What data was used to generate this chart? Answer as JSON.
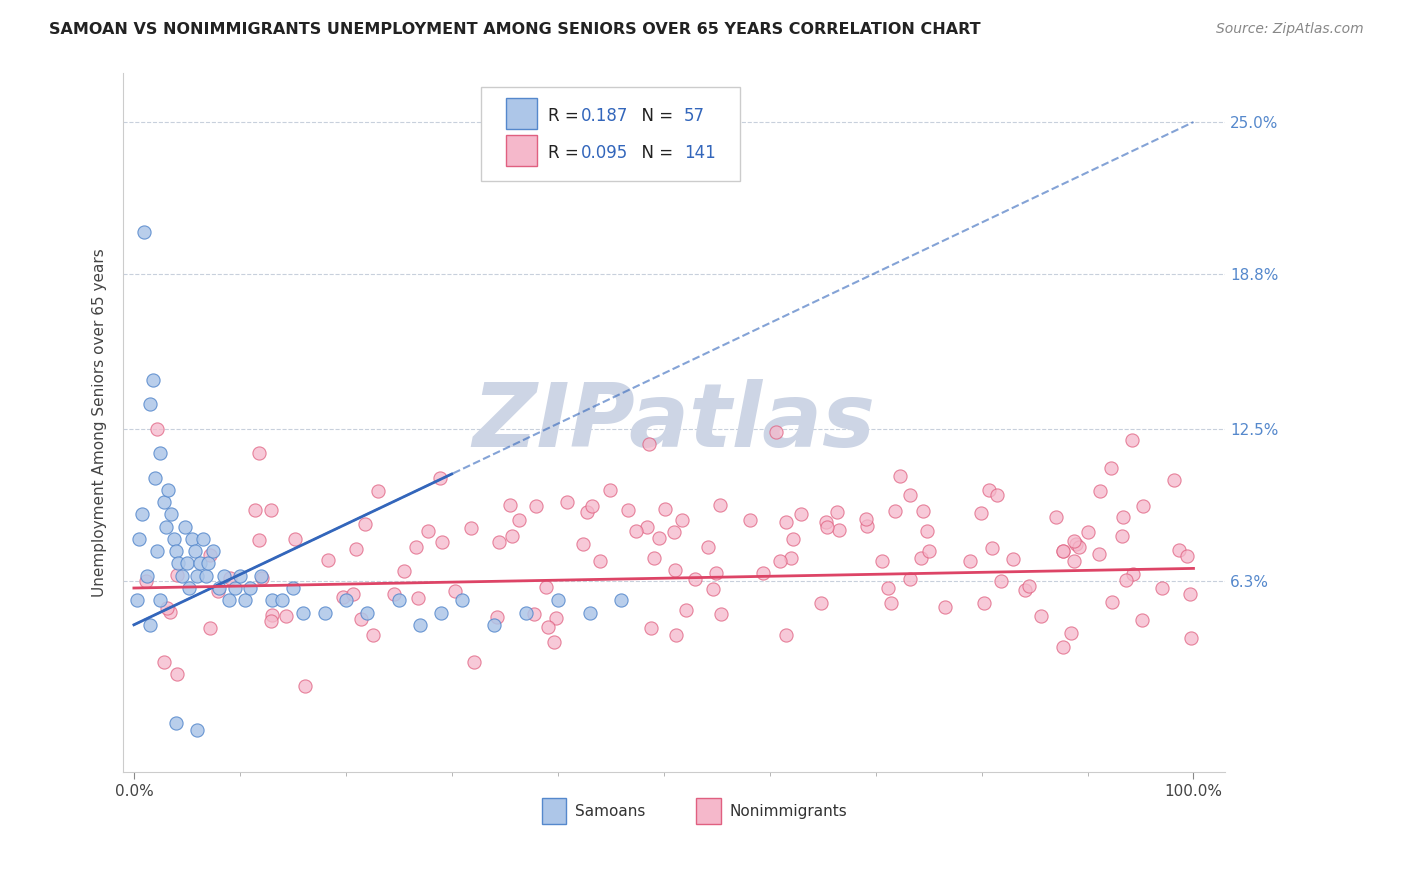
{
  "title": "SAMOAN VS NONIMMIGRANTS UNEMPLOYMENT AMONG SENIORS OVER 65 YEARS CORRELATION CHART",
  "source": "Source: ZipAtlas.com",
  "ylabel": "Unemployment Among Seniors over 65 years",
  "ytick_labels": [
    "6.3%",
    "12.5%",
    "18.8%",
    "25.0%"
  ],
  "ytick_positions": [
    6.3,
    12.5,
    18.8,
    25.0
  ],
  "samoans_R": "0.187",
  "samoans_N": "57",
  "nonimm_R": "0.095",
  "nonimm_N": "141",
  "samoan_fill": "#adc6e8",
  "samoan_edge": "#5588cc",
  "nonimm_fill": "#f5b8cb",
  "nonimm_edge": "#e06080",
  "samoan_trend_color": "#3366bb",
  "nonimm_trend_color": "#dd4466",
  "grid_color": "#c8d0dc",
  "spine_color": "#cccccc",
  "background_color": "#ffffff",
  "raxis_color": "#5588cc",
  "watermark_color": "#cdd5e5",
  "title_color": "#222222",
  "source_color": "#888888",
  "legend_text_color": "#222222",
  "legend_num_color": "#3366bb"
}
